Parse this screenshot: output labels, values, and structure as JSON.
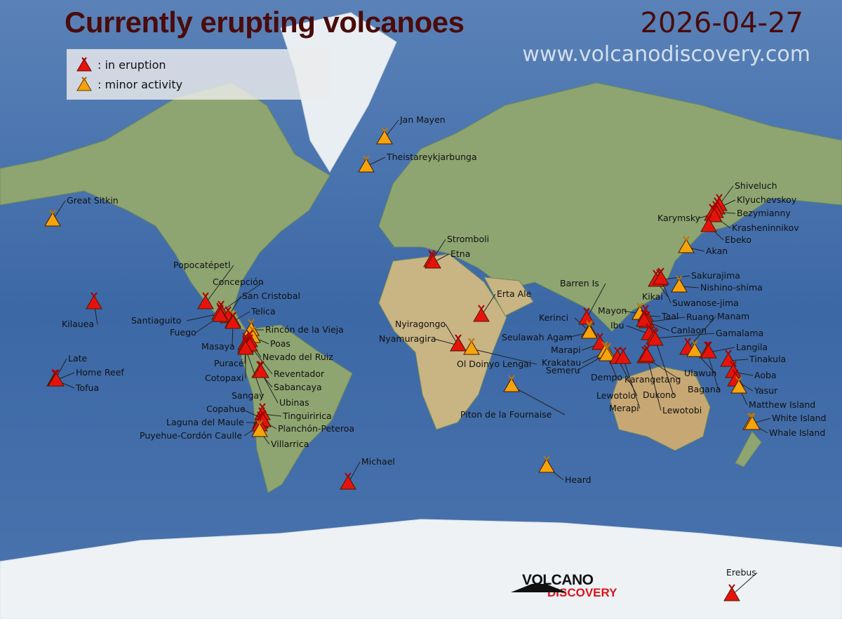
{
  "header": {
    "title": "Currently erupting volcanoes",
    "date": "2026-04-27",
    "url": "www.volcanodiscovery.com"
  },
  "legend": [
    {
      "status": "eruption",
      "label": ":  in eruption"
    },
    {
      "status": "minor",
      "label": ":  minor activity"
    }
  ],
  "colors": {
    "eruption": "#e8120c",
    "minor": "#f5a40c",
    "ocean": "#3f6ca8",
    "land": "#7f9a6a",
    "ice": "#eef2f5"
  },
  "logo": {
    "line1": "VOLCANO",
    "line2": "DISCOVERY"
  },
  "volcanoes": [
    {
      "name": "Jan Mayen",
      "status": "minor"
    },
    {
      "name": "Theistareykjarbunga",
      "status": "minor"
    },
    {
      "name": "Great Sitkin",
      "status": "minor"
    },
    {
      "name": "Kilauea",
      "status": "eruption"
    },
    {
      "name": "Late",
      "status": "eruption"
    },
    {
      "name": "Home Reef",
      "status": "eruption"
    },
    {
      "name": "Tofua",
      "status": "eruption"
    },
    {
      "name": "Popocatépetl",
      "status": "eruption"
    },
    {
      "name": "Concepción",
      "status": "eruption"
    },
    {
      "name": "San Cristobal",
      "status": "eruption"
    },
    {
      "name": "Telica",
      "status": "minor"
    },
    {
      "name": "Santiaguito",
      "status": "eruption"
    },
    {
      "name": "Fuego",
      "status": "eruption"
    },
    {
      "name": "Masaya",
      "status": "eruption"
    },
    {
      "name": "Rincón de la Vieja",
      "status": "minor"
    },
    {
      "name": "Poas",
      "status": "minor"
    },
    {
      "name": "Nevado del Ruiz",
      "status": "eruption"
    },
    {
      "name": "Puracé",
      "status": "eruption"
    },
    {
      "name": "Cotopaxi",
      "status": "eruption"
    },
    {
      "name": "Reventador",
      "status": "eruption"
    },
    {
      "name": "Sangay",
      "status": "eruption"
    },
    {
      "name": "Sabancaya",
      "status": "eruption"
    },
    {
      "name": "Ubinas",
      "status": "eruption"
    },
    {
      "name": "Copahue",
      "status": "eruption"
    },
    {
      "name": "Tinguiririca",
      "status": "eruption"
    },
    {
      "name": "Laguna del Maule",
      "status": "eruption"
    },
    {
      "name": "Planchón-Peteroa",
      "status": "eruption"
    },
    {
      "name": "Puyehue-Cordón Caulle",
      "status": "eruption"
    },
    {
      "name": "Villarrica",
      "status": "minor"
    },
    {
      "name": "Stromboli",
      "status": "eruption"
    },
    {
      "name": "Etna",
      "status": "eruption"
    },
    {
      "name": "Erta Ale",
      "status": "eruption"
    },
    {
      "name": "Nyiragongo",
      "status": "eruption"
    },
    {
      "name": "Nyamuragira",
      "status": "eruption"
    },
    {
      "name": "Ol Doinyo Lengai",
      "status": "minor"
    },
    {
      "name": "Piton de la Fournaise",
      "status": "minor"
    },
    {
      "name": "Michael",
      "status": "eruption"
    },
    {
      "name": "Heard",
      "status": "minor"
    },
    {
      "name": "Erebus",
      "status": "eruption"
    },
    {
      "name": "Barren Is",
      "status": "eruption"
    },
    {
      "name": "Kerinci",
      "status": "minor"
    },
    {
      "name": "Seulawah Agam",
      "status": "minor"
    },
    {
      "name": "Marapi",
      "status": "eruption"
    },
    {
      "name": "Krakatau",
      "status": "minor"
    },
    {
      "name": "Semeru",
      "status": "minor"
    },
    {
      "name": "Dempo",
      "status": "minor"
    },
    {
      "name": "Lewotolo",
      "status": "eruption"
    },
    {
      "name": "Merapi",
      "status": "eruption"
    },
    {
      "name": "Karangetang",
      "status": "eruption"
    },
    {
      "name": "Sakurajima",
      "status": "eruption"
    },
    {
      "name": "Nishino-shima",
      "status": "minor"
    },
    {
      "name": "Kikai",
      "status": "eruption"
    },
    {
      "name": "Suwanose-jima",
      "status": "eruption"
    },
    {
      "name": "Mayon",
      "status": "minor"
    },
    {
      "name": "Taal",
      "status": "eruption"
    },
    {
      "name": "Ruang",
      "status": "eruption"
    },
    {
      "name": "Canlaon",
      "status": "eruption"
    },
    {
      "name": "Ibu",
      "status": "eruption"
    },
    {
      "name": "Gamalama",
      "status": "eruption"
    },
    {
      "name": "Manam",
      "status": "eruption"
    },
    {
      "name": "Dukono",
      "status": "eruption"
    },
    {
      "name": "Lewotobi",
      "status": "eruption"
    },
    {
      "name": "Ulawun",
      "status": "minor"
    },
    {
      "name": "Bagana",
      "status": "eruption"
    },
    {
      "name": "Langila",
      "status": "eruption"
    },
    {
      "name": "Tinakula",
      "status": "eruption"
    },
    {
      "name": "Aoba",
      "status": "eruption"
    },
    {
      "name": "Yasur",
      "status": "eruption"
    },
    {
      "name": "Matthew Island",
      "status": "minor"
    },
    {
      "name": "White Island",
      "status": "minor"
    },
    {
      "name": "Whale Island",
      "status": "minor"
    },
    {
      "name": "Shiveluch",
      "status": "eruption"
    },
    {
      "name": "Klyuchevskoy",
      "status": "eruption"
    },
    {
      "name": "Bezymianny",
      "status": "eruption"
    },
    {
      "name": "Karymsky",
      "status": "eruption"
    },
    {
      "name": "Krasheninnikov",
      "status": "eruption"
    },
    {
      "name": "Ebeko",
      "status": "eruption"
    },
    {
      "name": "Akan",
      "status": "minor"
    }
  ]
}
